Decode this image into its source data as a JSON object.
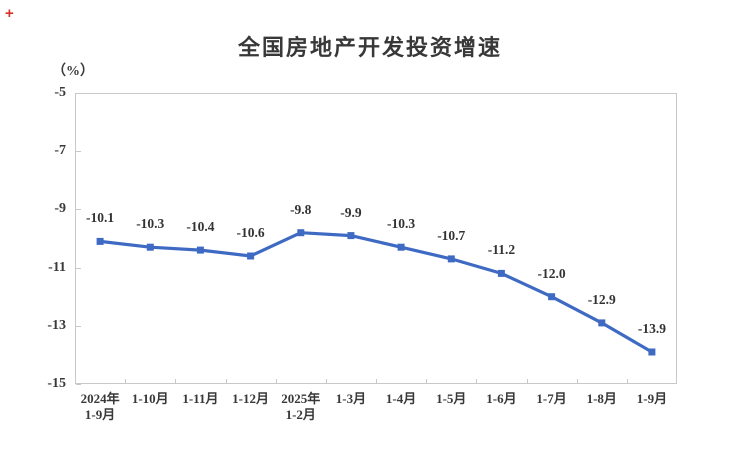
{
  "icons": {
    "red_plus": "+"
  },
  "chart_data": {
    "type": "line",
    "title": "全国房地产开发投资增速",
    "unit_label": "（%）",
    "categories": [
      [
        "2024年",
        "1-9月"
      ],
      [
        "1-10月"
      ],
      [
        "1-11月"
      ],
      [
        "1-12月"
      ],
      [
        "2025年",
        "1-2月"
      ],
      [
        "1-3月"
      ],
      [
        "1-4月"
      ],
      [
        "1-5月"
      ],
      [
        "1-6月"
      ],
      [
        "1-7月"
      ],
      [
        "1-8月"
      ],
      [
        "1-9月"
      ]
    ],
    "values": [
      -10.1,
      -10.3,
      -10.4,
      -10.6,
      -9.8,
      -9.9,
      -10.3,
      -10.7,
      -11.2,
      -12.0,
      -12.9,
      -13.9
    ],
    "labels": [
      "-10.1",
      "-10.3",
      "-10.4",
      "-10.6",
      "-9.8",
      "-9.9",
      "-10.3",
      "-10.7",
      "-11.2",
      "-12.0",
      "-12.9",
      "-13.9"
    ],
    "y_ticks": [
      -5,
      -7,
      -9,
      -11,
      -13,
      -15
    ],
    "ylim": [
      -15,
      -5
    ],
    "grid": false,
    "legend": "none",
    "marker": "square",
    "line_color": "#3F6AC4",
    "axis_color": "#C8C8C8",
    "text_color": "#3A3A3A",
    "background": "#FFFFFF"
  }
}
